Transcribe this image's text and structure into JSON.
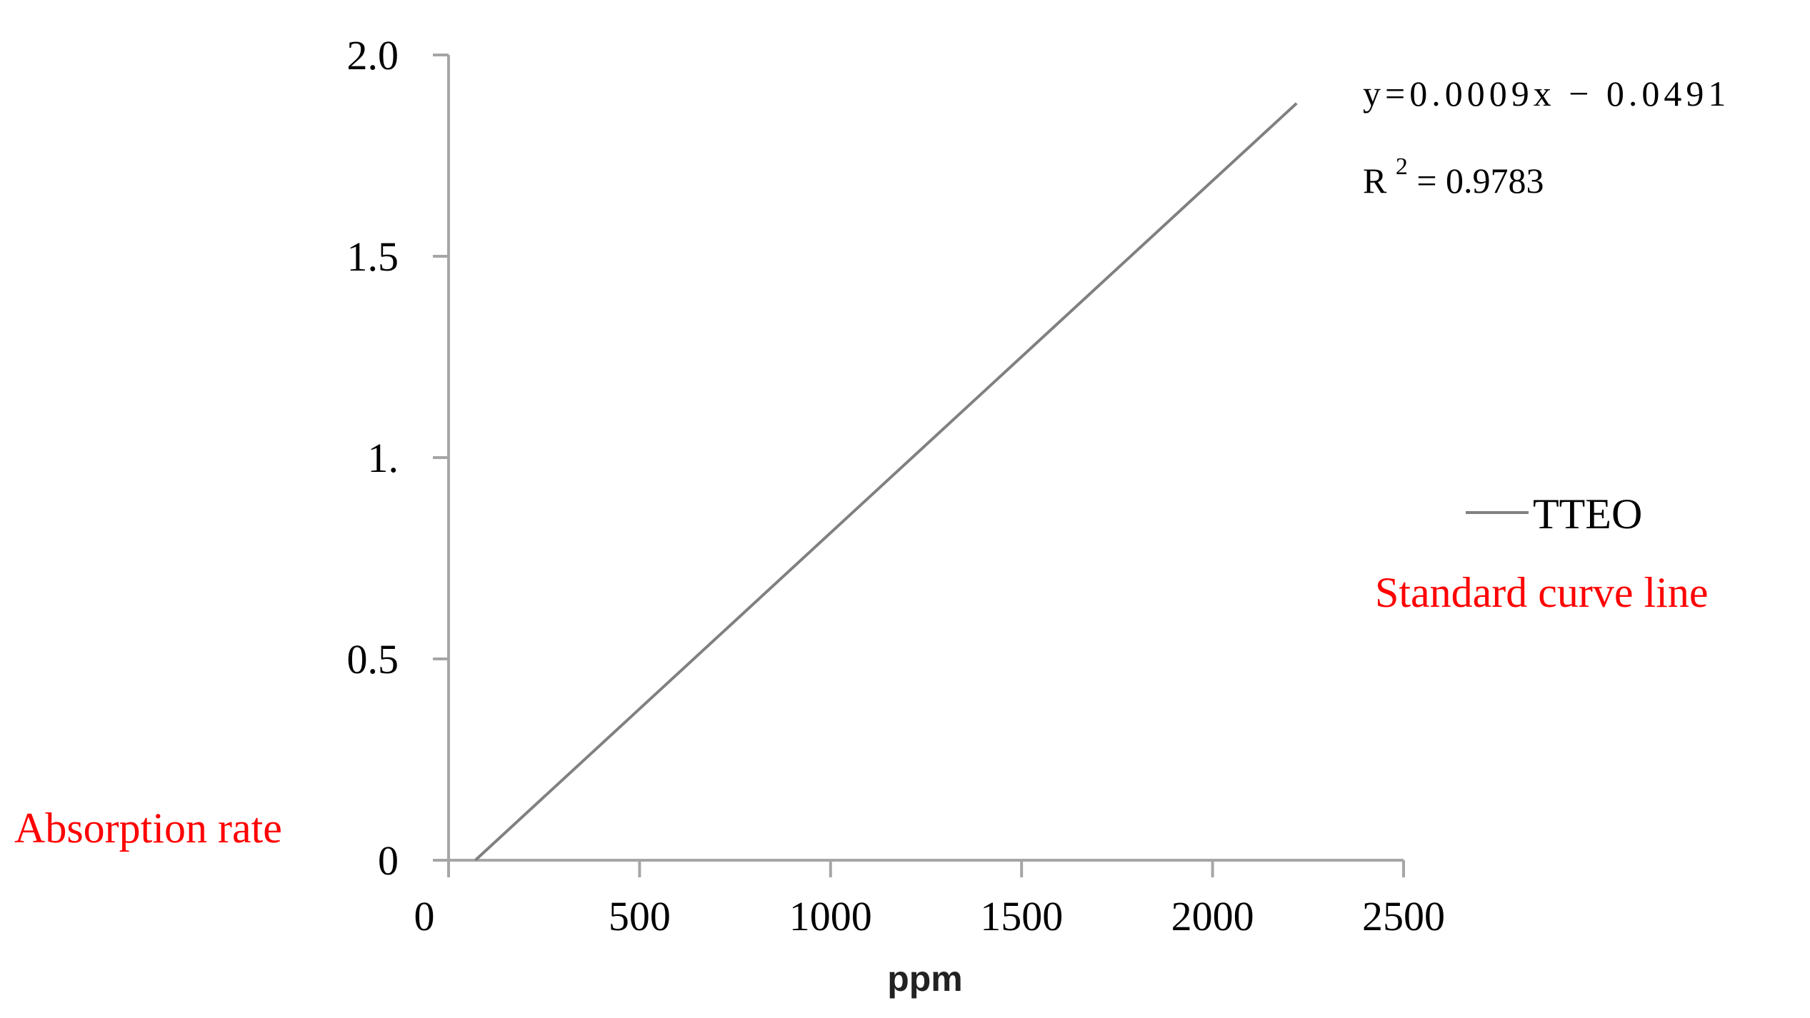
{
  "chart_data": {
    "type": "line",
    "xlabel": "ppm",
    "ylabel": "Absorption rate",
    "xlim": [
      0,
      2500
    ],
    "ylim": [
      0,
      2.0
    ],
    "x_ticks": [
      0,
      500,
      1000,
      1500,
      2000,
      2500
    ],
    "x_tick_labels": [
      "0",
      "500",
      "1000",
      "1500",
      "2000",
      "2500"
    ],
    "y_ticks": [
      0,
      0.5,
      1.0,
      1.5,
      2.0
    ],
    "y_tick_labels": [
      "0",
      "0.5",
      "1.",
      "1.5",
      "2.0"
    ],
    "grid": false,
    "legend_position": "right",
    "series": [
      {
        "name": "TTEO",
        "color": "#808080",
        "x": [
          70,
          2220
        ],
        "y": [
          0.0,
          1.88
        ]
      }
    ],
    "annotations": {
      "equation": "y=0.0009x − 0.0491",
      "r2_prefix": "R",
      "r2_superscript": "2",
      "r2_value": " = 0.9783",
      "standard_curve_label": "Standard curve line"
    }
  }
}
